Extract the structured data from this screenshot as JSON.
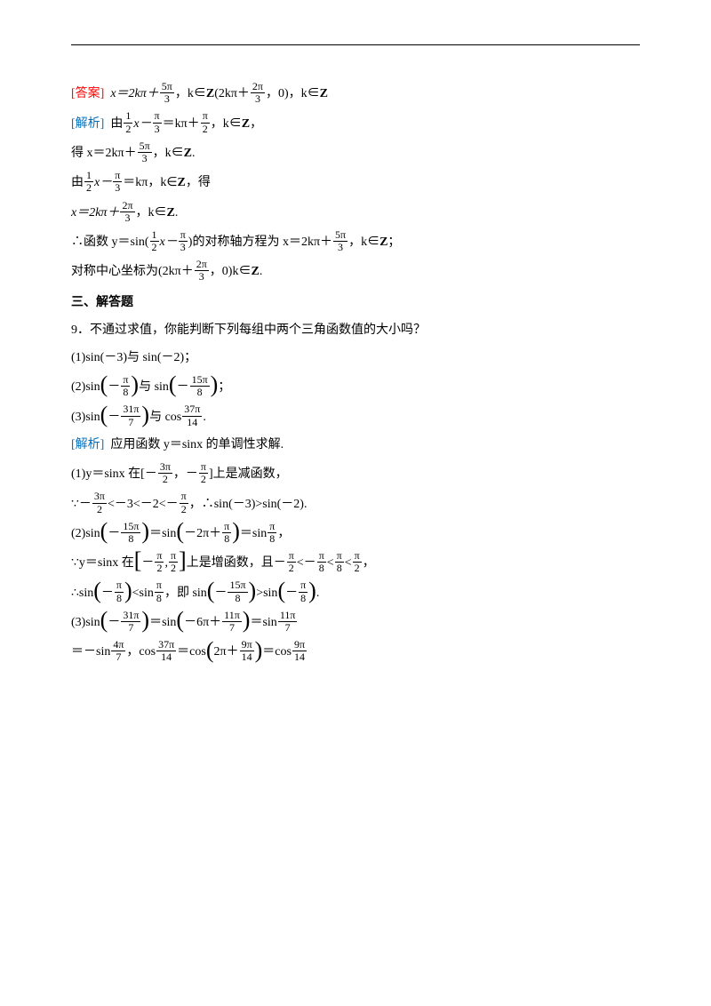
{
  "colors": {
    "red": "#ff0000",
    "blue": "#0070c0",
    "text": "#000000",
    "bg": "#ffffff",
    "divider": "#000000"
  },
  "typography": {
    "body_fontsize": 14,
    "frac_fontsize": 12,
    "paren_big_fontsize": 26
  },
  "labels": {
    "answer": "[答案]",
    "analysis": "[解析]",
    "section3": "三、解答题",
    "q9": "9．不通过求值，你能判断下列每组中两个三角函数值的大小吗？",
    "apply_mono": "应用函数 y＝sinx 的单调性求解."
  },
  "answer_line": {
    "prefix": "x＝2kπ＋",
    "frac1_num": "5π",
    "frac1_den": "3",
    "mid1": "，k∈",
    "Z1": "Z",
    "gap": "   (2kπ＋",
    "frac2_num": "2π",
    "frac2_den": "3",
    "mid2": "，0)，k∈",
    "Z2": "Z"
  },
  "analysis1": {
    "by": "由",
    "f1n": "1",
    "f1d": "2",
    "xminus": "x－",
    "f2n": "π",
    "f2d": "3",
    "eq": "＝kπ＋",
    "f3n": "π",
    "f3d": "2",
    "tail": "，k∈",
    "Z": "Z",
    "comma": "，"
  },
  "get1": {
    "pre": "得 x＝2kπ＋",
    "fn": "5π",
    "fd": "3",
    "tail": "，k∈",
    "Z": "Z",
    "dot": "."
  },
  "by2": {
    "by": "由",
    "f1n": "1",
    "f1d": "2",
    "xminus": "x－",
    "f2n": "π",
    "f2d": "3",
    "eq": "＝kπ，k∈",
    "Z": "Z",
    "tail": "，得"
  },
  "x2": {
    "pre": "x＝2kπ＋",
    "fn": "2π",
    "fd": "3",
    "tail": "，k∈",
    "Z": "Z",
    "dot": "."
  },
  "therefore1": {
    "pre": "∴函数 y＝sin(",
    "f1n": "1",
    "f1d": "2",
    "xminus": "x－",
    "f2n": "π",
    "f2d": "3",
    "mid": ")的对称轴方程为 x＝2kπ＋",
    "f3n": "5π",
    "f3d": "3",
    "tail": "，k∈",
    "Z": "Z",
    "semi": "；"
  },
  "center": {
    "pre": "对称中心坐标为(2kπ＋",
    "fn": "2π",
    "fd": "3",
    "tail": "，0)k∈",
    "Z": "Z",
    "dot": "."
  },
  "p1": {
    "text": "(1)sin(－3)与 sin(－2)；"
  },
  "p2": {
    "pre": "(2)sin",
    "f1n": "π",
    "f1d": "8",
    "neg1": "－",
    "mid": "与 sin",
    "f2n": "15π",
    "f2d": "8",
    "neg2": "－",
    "semi": "；"
  },
  "p3": {
    "pre": "(3)sin",
    "f1n": "31π",
    "f1d": "7",
    "neg": "－",
    "mid": "与 cos",
    "f2n": "37π",
    "f2d": "14",
    "dot": "."
  },
  "s1": {
    "pre": "(1)y＝sinx 在[－",
    "f1n": "3π",
    "f1d": "2",
    "mid": "，－",
    "f2n": "π",
    "f2d": "2",
    "tail": "]上是减函数，"
  },
  "s1b": {
    "pre": "∵－",
    "f1n": "3π",
    "f1d": "2",
    "lt1": "<－3<－2<－",
    "f2n": "π",
    "f2d": "2",
    "tail": "，∴sin(－3)>sin(－2)."
  },
  "s2": {
    "pre": "(2)sin",
    "neg1": "－",
    "f1n": "15π",
    "f1d": "8",
    "eq1": "＝sin",
    "inner": "－2π＋",
    "f2n": "π",
    "f2d": "8",
    "eq2": "＝sin",
    "f3n": "π",
    "f3d": "8",
    "comma": "，"
  },
  "s2b": {
    "pre": "∵y＝sinx 在",
    "l1n": "π",
    "l1d": "2",
    "neg1": "－",
    "l2n": "π",
    "l2d": "2",
    "mid": "上是增函数，且－",
    "r1n": "π",
    "r1d": "2",
    "lt1": "<－",
    "r2n": "π",
    "r2d": "8",
    "lt2": "<",
    "r3n": "π",
    "r3d": "8",
    "lt3": "<",
    "r4n": "π",
    "r4d": "2",
    "comma": "，"
  },
  "s2c": {
    "pre": "∴sin",
    "neg1": "－",
    "f1n": "π",
    "f1d": "8",
    "lt": "<sin",
    "f2n": "π",
    "f2d": "8",
    "mid": "，即 sin",
    "neg2": "－",
    "f3n": "15π",
    "f3d": "8",
    "gt": ">sin",
    "neg3": "－",
    "f4n": "π",
    "f4d": "8",
    "dot": "."
  },
  "s3": {
    "pre": "(3)sin",
    "neg": "－",
    "f1n": "31π",
    "f1d": "7",
    "eq1": "＝sin",
    "inner": "－6π＋",
    "f2n": "11π",
    "f2d": "7",
    "eq2": "＝sin",
    "f3n": "11π",
    "f3d": "7"
  },
  "s3b": {
    "pre": "＝－sin",
    "f1n": "4π",
    "f1d": "7",
    "mid": "，cos",
    "f2n": "37π",
    "f2d": "14",
    "eq1": "＝cos",
    "inner": "2π＋",
    "f3n": "9π",
    "f3d": "14",
    "eq2": "＝cos",
    "f4n": "9π",
    "f4d": "14"
  }
}
